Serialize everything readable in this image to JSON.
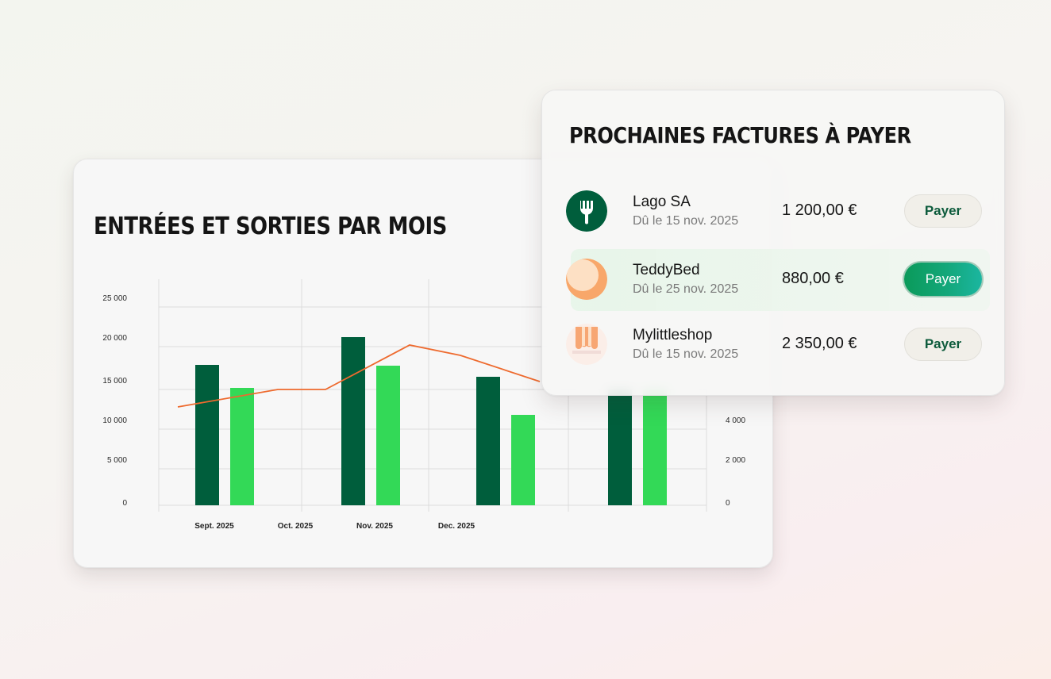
{
  "chart": {
    "title": "ENTRÉES ET SORTIES PAR MOIS"
  },
  "invoices": {
    "title": "PROCHAINES FACTURES À PAYER",
    "items": [
      {
        "name": "Lago SA",
        "due": "Dû le 15 nov. 2025",
        "amount": "1 200,00 €",
        "button": "Payer",
        "icon": "fork-icon"
      },
      {
        "name": "TeddyBed",
        "due": "Dû le 25 nov. 2025",
        "amount": "880,00 €",
        "button": "Payer",
        "icon": "teddybed-logo"
      },
      {
        "name": "Mylittleshop",
        "due": "Dû le 15 nov. 2025",
        "amount": "2 350,00 €",
        "button": "Payer",
        "icon": "mylittleshop-logo"
      }
    ]
  },
  "colors": {
    "entries": "#005e3c",
    "exits": "#33d957",
    "line": "#ee6a2e",
    "pay_primary": "#0b9a5a"
  },
  "chart_data": {
    "type": "bar",
    "title": "ENTRÉES ET SORTIES PAR MOIS",
    "categories": [
      "Sept. 2025",
      "Oct. 2025",
      "Nov. 2025",
      "Dec. 2025"
    ],
    "series": [
      {
        "type": "bar",
        "values": [
          17700,
          21200,
          16200,
          14600
        ]
      },
      {
        "type": "bar",
        "values": [
          14800,
          17600,
          11400,
          14600
        ]
      },
      {
        "type": "line",
        "values": [
          12400,
          14600,
          20200,
          15600
        ]
      }
    ],
    "y_left": {
      "ticks": [
        "0",
        "5 000",
        "10 000",
        "15 000",
        "20 000",
        "25 000"
      ],
      "ylim": [
        0,
        25000
      ]
    },
    "y_right": {
      "ticks": [
        "0",
        "2 000",
        "4 000"
      ]
    },
    "grid": true
  }
}
